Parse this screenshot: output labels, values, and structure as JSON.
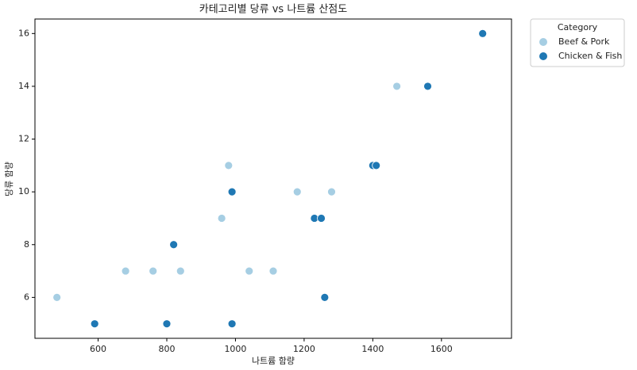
{
  "chart_data": {
    "type": "scatter",
    "title": "카테고리별 당류 vs 나트륨 산점도",
    "x_label": "나트륨 함량",
    "y_label": "당류 함량",
    "legend_title": "Category",
    "legend_position": "outside-upper-right",
    "series": [
      {
        "name": "Beef & Pork",
        "color": "#a6cee3",
        "x": [
          480,
          680,
          760,
          840,
          960,
          980,
          1040,
          1110,
          1180,
          1280,
          1470
        ],
        "values": [
          6,
          7,
          7,
          7,
          9,
          11,
          7,
          7,
          10,
          10,
          14
        ]
      },
      {
        "name": "Chicken & Fish",
        "color": "#1f78b4",
        "x": [
          590,
          800,
          820,
          990,
          990,
          1230,
          1250,
          1260,
          1400,
          1410,
          1560,
          1720
        ],
        "values": [
          5,
          5,
          8,
          10,
          5,
          9,
          9,
          6,
          11,
          11,
          14,
          16
        ]
      }
    ],
    "xlim": [
      416,
      1804
    ],
    "xticks": [
      600,
      800,
      1000,
      1200,
      1400,
      1600
    ],
    "ylim": [
      4.45,
      16.55
    ],
    "yticks": [
      6,
      8,
      10,
      12,
      14,
      16
    ],
    "grid": false
  }
}
